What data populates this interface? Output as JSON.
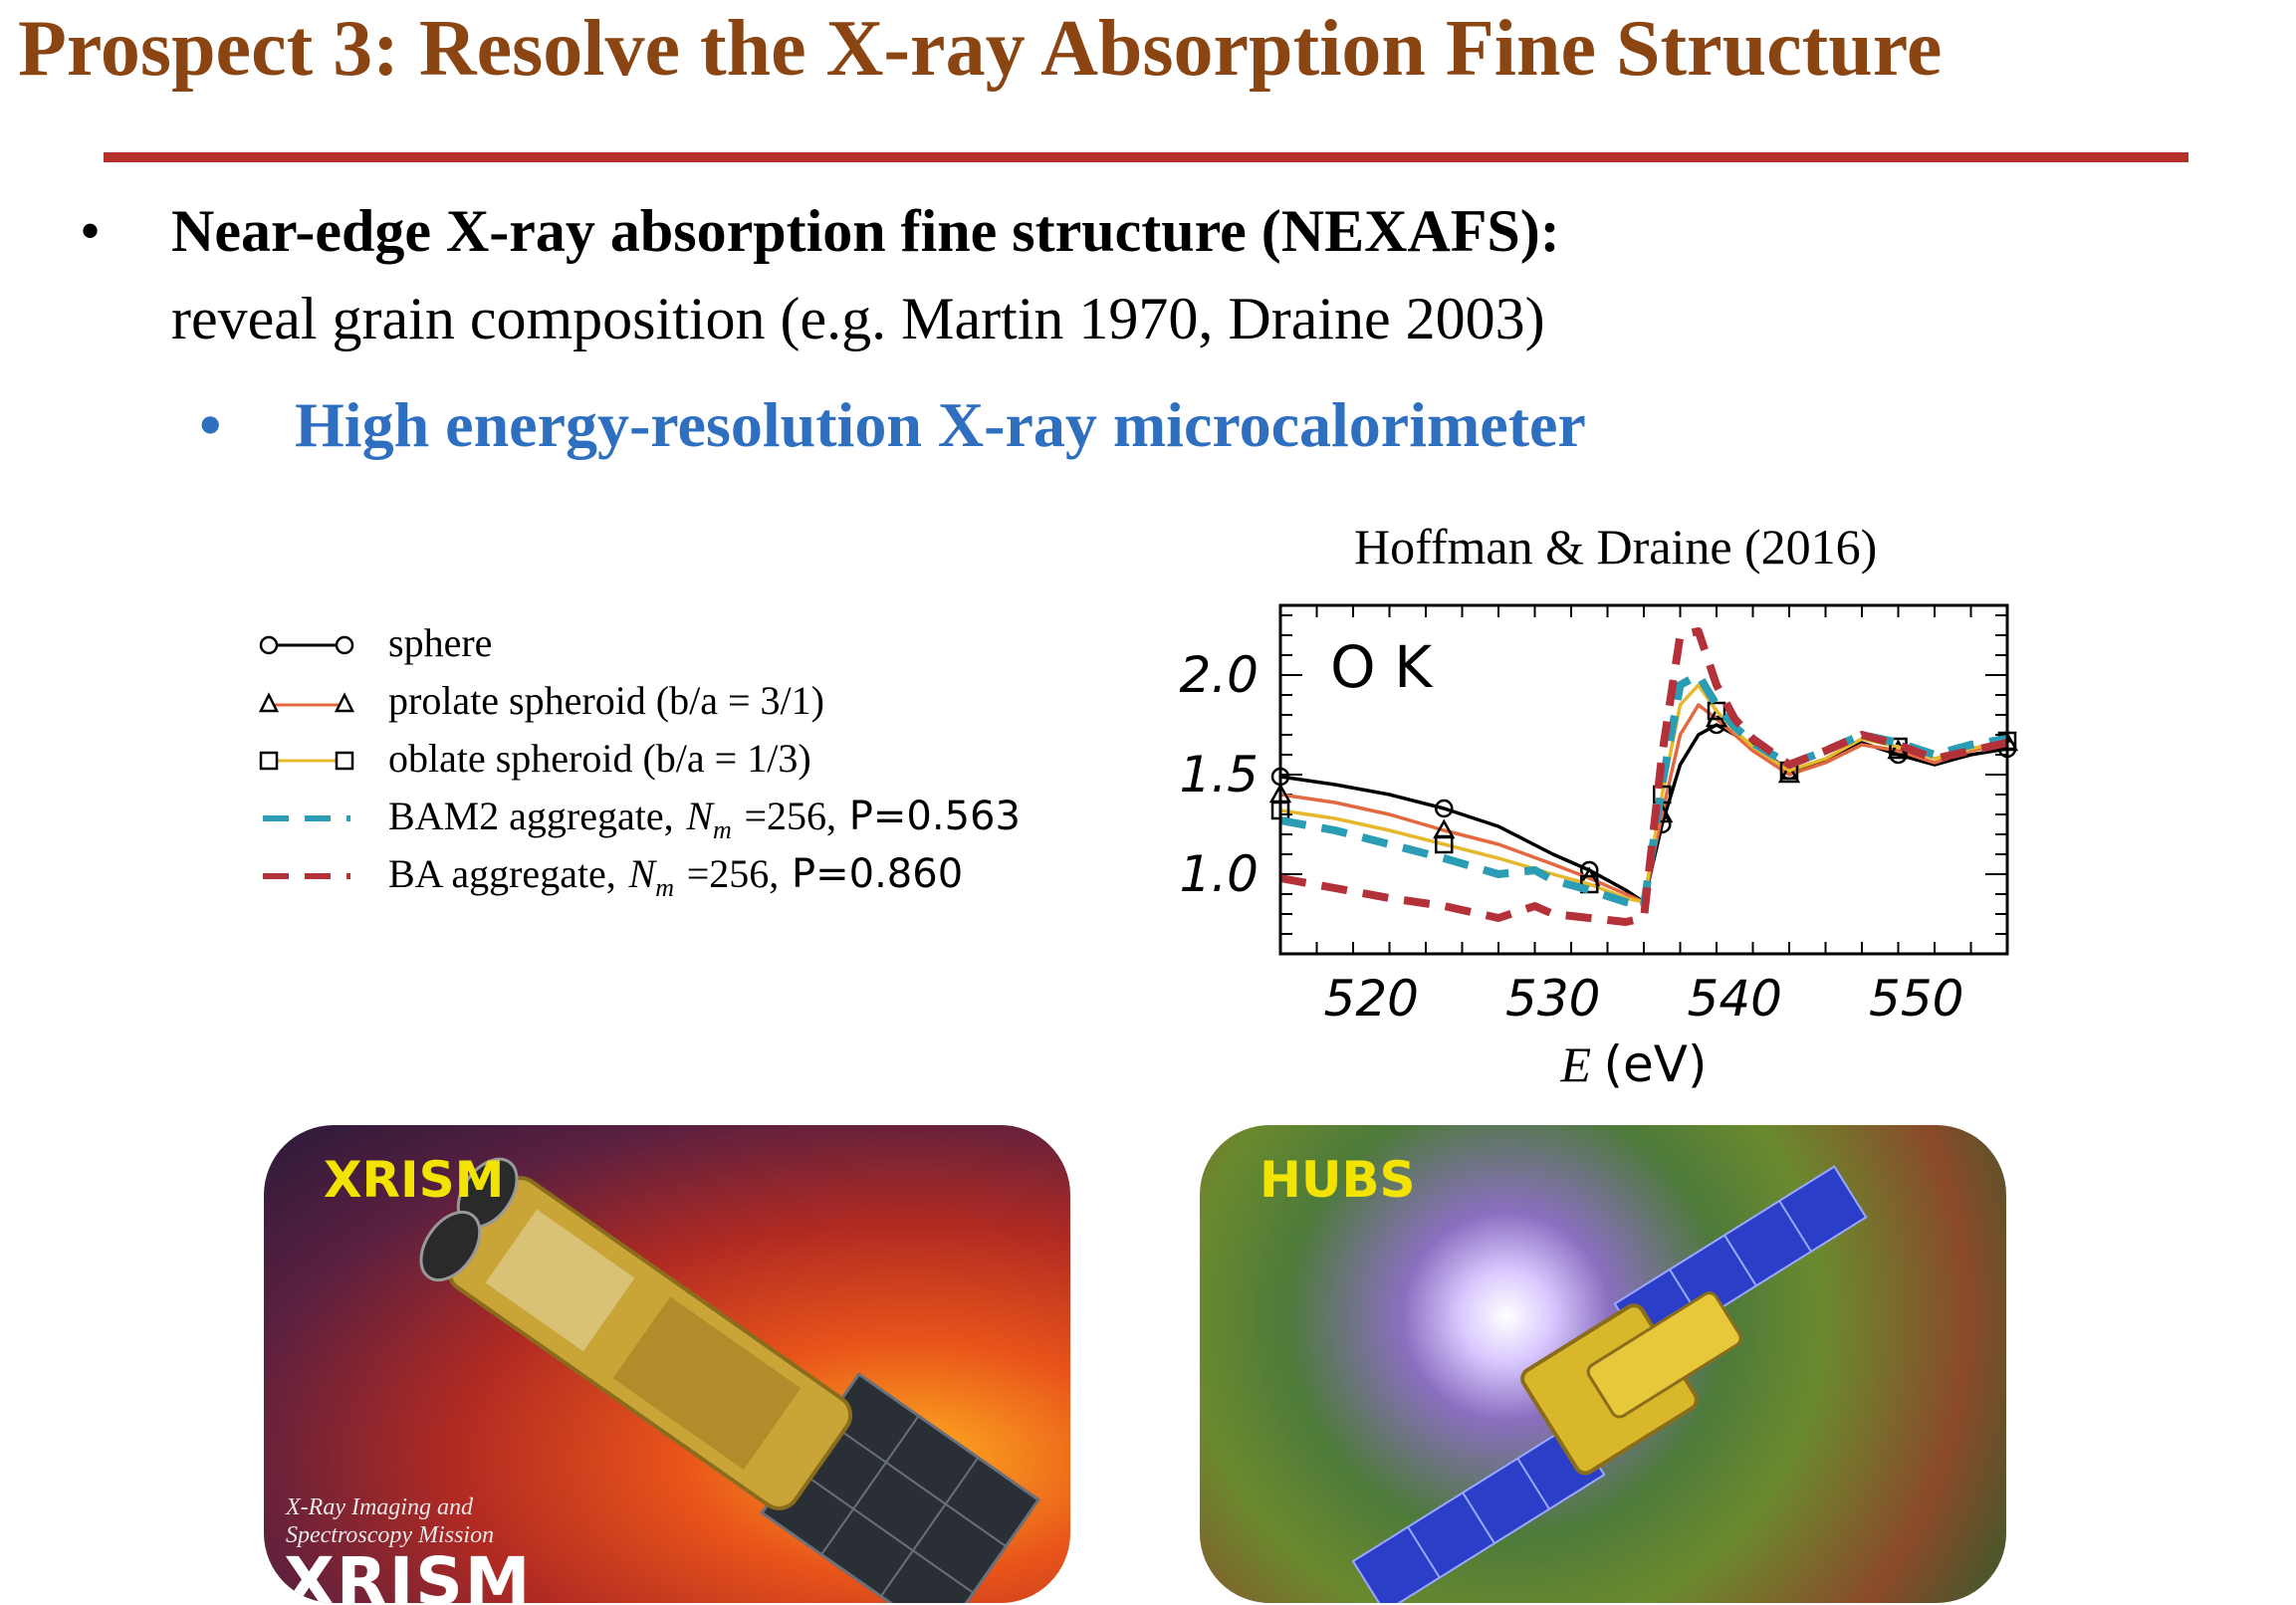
{
  "slide": {
    "title": "Prospect 3: Resolve the X-ray Absorption Fine Structure",
    "bullet1_bold": "Near-edge X-ray absorption fine structure (NEXAFS):",
    "bullet1_rest": "reveal grain composition (e.g. Martin 1970, Draine 2003)",
    "bullet2": "High energy-resolution X-ray microcalorimeter",
    "bullet_char": "•"
  },
  "legend": {
    "sphere": "sphere",
    "prolate": "prolate spheroid (b/a = 3/1)",
    "oblate": "oblate spheroid (b/a = 1/3)",
    "bam2_prefix": "BAM2 aggregate,",
    "ba_prefix": "BA aggregate,",
    "nm_symbol": "N",
    "nm_sub": "m",
    "nm_eq": "=256,",
    "bam2_p": "P=0.563",
    "ba_p": "P=0.860"
  },
  "chart_data": {
    "type": "line",
    "title": "Hoffman & Draine (2016)",
    "panel_label": "O K",
    "xlabel_var": "E",
    "xlabel_unit": "(eV)",
    "xlim": [
      515,
      555
    ],
    "ylim": [
      0.6,
      2.35
    ],
    "x_ticks": [
      "520",
      "530",
      "540",
      "550"
    ],
    "y_ticks": [
      "1.0",
      "1.5",
      "2.0"
    ],
    "series": [
      {
        "name": "sphere",
        "color": "#000000",
        "style": "solid",
        "marker": "circle",
        "x": [
          515,
          518,
          521,
          524,
          527,
          530,
          532,
          534,
          535,
          536,
          537,
          538,
          539,
          540,
          541,
          543,
          545,
          547,
          549,
          551,
          553,
          555
        ],
        "y": [
          1.49,
          1.45,
          1.4,
          1.33,
          1.24,
          1.1,
          1.02,
          0.92,
          0.86,
          1.25,
          1.55,
          1.7,
          1.75,
          1.7,
          1.65,
          1.52,
          1.57,
          1.66,
          1.6,
          1.55,
          1.6,
          1.63
        ]
      },
      {
        "name": "prolate spheroid (b/a = 3/1)",
        "color": "#e4683f",
        "style": "solid",
        "marker": "triangle",
        "x": [
          515,
          518,
          521,
          524,
          527,
          530,
          532,
          534,
          535,
          536,
          537,
          538,
          539,
          540,
          541,
          543,
          545,
          547,
          549,
          551,
          553,
          555
        ],
        "y": [
          1.4,
          1.36,
          1.3,
          1.22,
          1.15,
          1.05,
          0.98,
          0.9,
          0.86,
          1.3,
          1.7,
          1.85,
          1.78,
          1.7,
          1.62,
          1.5,
          1.56,
          1.65,
          1.62,
          1.56,
          1.62,
          1.66
        ]
      },
      {
        "name": "oblate spheroid (b/a = 1/3)",
        "color": "#e6b92c",
        "style": "solid",
        "marker": "square",
        "x": [
          515,
          518,
          521,
          524,
          527,
          530,
          532,
          534,
          535,
          536,
          537,
          538,
          539,
          540,
          541,
          543,
          545,
          547,
          549,
          551,
          553,
          555
        ],
        "y": [
          1.32,
          1.28,
          1.22,
          1.15,
          1.08,
          1.0,
          0.95,
          0.88,
          0.86,
          1.4,
          1.85,
          1.95,
          1.82,
          1.72,
          1.64,
          1.52,
          1.58,
          1.68,
          1.64,
          1.58,
          1.63,
          1.67
        ]
      },
      {
        "name": "BAM2 aggregate",
        "color": "#2a9db5",
        "style": "dashed",
        "marker": "none",
        "x": [
          515,
          518,
          521,
          524,
          527,
          529,
          530,
          532,
          534,
          535,
          536,
          537,
          538,
          539,
          540,
          541,
          543,
          545,
          547,
          549,
          551,
          553,
          555
        ],
        "y": [
          1.27,
          1.22,
          1.15,
          1.08,
          1.0,
          1.02,
          0.97,
          0.92,
          0.86,
          0.84,
          1.45,
          1.95,
          2.0,
          1.85,
          1.74,
          1.66,
          1.55,
          1.62,
          1.7,
          1.66,
          1.6,
          1.65,
          1.68
        ]
      },
      {
        "name": "BA aggregate",
        "color": "#b5313a",
        "style": "dashed",
        "marker": "none",
        "x": [
          515,
          518,
          521,
          524,
          527,
          529,
          530,
          532,
          534,
          535,
          536,
          537,
          538,
          539,
          540,
          541,
          543,
          545,
          547,
          549,
          551,
          553,
          555
        ],
        "y": [
          0.98,
          0.93,
          0.88,
          0.84,
          0.78,
          0.84,
          0.8,
          0.78,
          0.76,
          0.78,
          1.6,
          2.2,
          2.22,
          1.95,
          1.78,
          1.68,
          1.55,
          1.62,
          1.7,
          1.65,
          1.58,
          1.62,
          1.66
        ]
      }
    ]
  },
  "images": {
    "xrism_label": "XRISM",
    "xrism_sub_line1": "X-Ray Imaging and",
    "xrism_sub_line2": "Spectroscopy Mission",
    "xrism_logo": "XRISM",
    "hubs_label": "HUBS"
  }
}
